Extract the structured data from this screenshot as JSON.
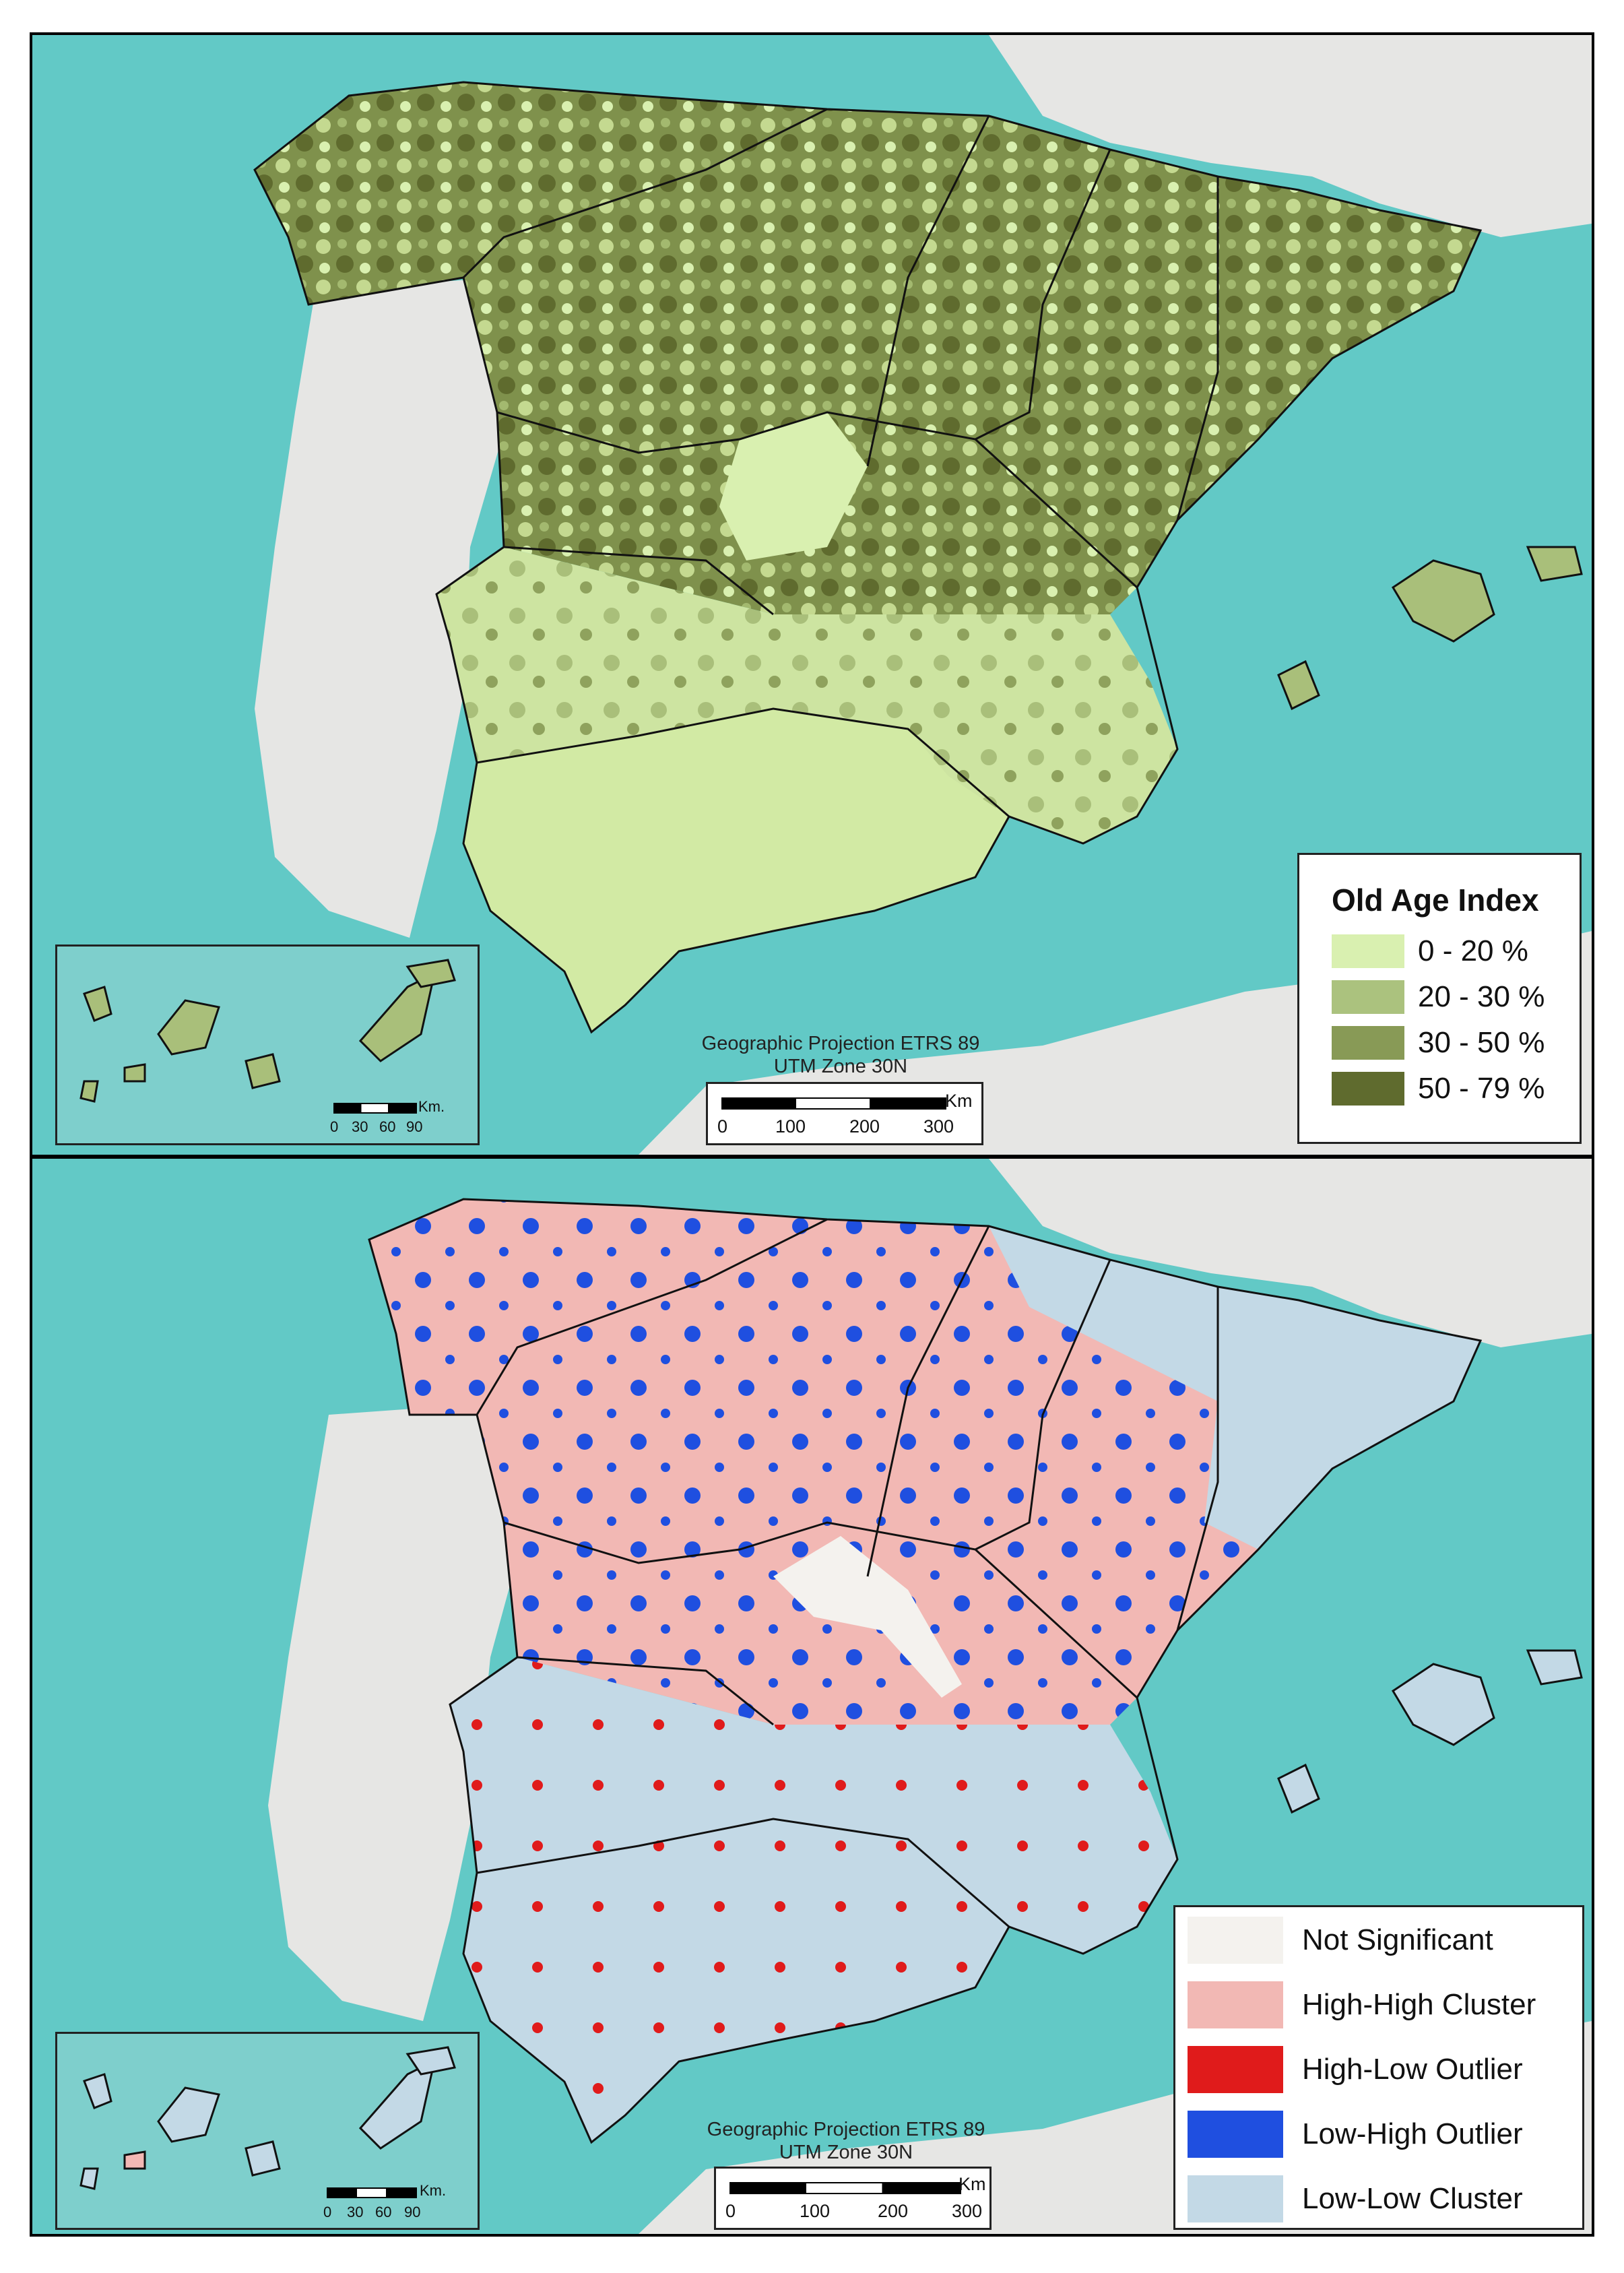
{
  "top_map": {
    "legend": {
      "title": "Old Age Index",
      "classes": [
        {
          "label": "0 - 20 %",
          "color": "#d9f0b0"
        },
        {
          "label": "20 - 30 %",
          "color": "#abc27e"
        },
        {
          "label": "30 - 50 %",
          "color": "#889a56"
        },
        {
          "label": "50 - 79 %",
          "color": "#5f6b2e"
        }
      ]
    },
    "projection_line1": "Geographic Projection ETRS 89",
    "projection_line2": "UTM Zone 30N",
    "scale": {
      "unit": "Km",
      "ticks": [
        "0",
        "100",
        "200",
        "300"
      ]
    },
    "inset_scale": {
      "unit": "Km.",
      "ticks": [
        "0",
        "30",
        "60",
        "90"
      ]
    }
  },
  "bottom_map": {
    "legend": {
      "classes": [
        {
          "label": "Not Significant",
          "color": "#f4f2ee"
        },
        {
          "label": "High-High Cluster",
          "color": "#f2b8b4"
        },
        {
          "label": "High-Low Outlier",
          "color": "#e01b1b"
        },
        {
          "label": "Low-High Outlier",
          "color": "#1f4fe0"
        },
        {
          "label": "Low-Low Cluster",
          "color": "#c3d9e6"
        }
      ]
    },
    "projection_line1": "Geographic Projection ETRS 89",
    "projection_line2": "UTM Zone 30N",
    "scale": {
      "unit": "Km",
      "ticks": [
        "0",
        "100",
        "200",
        "300"
      ]
    },
    "inset_scale": {
      "unit": "Km.",
      "ticks": [
        "0",
        "30",
        "60",
        "90"
      ]
    }
  },
  "colors": {
    "sea": "#62c9c6",
    "sea_deep": "#8fd8d2",
    "land_outside": "#e8e8e6",
    "border": "#111111"
  }
}
